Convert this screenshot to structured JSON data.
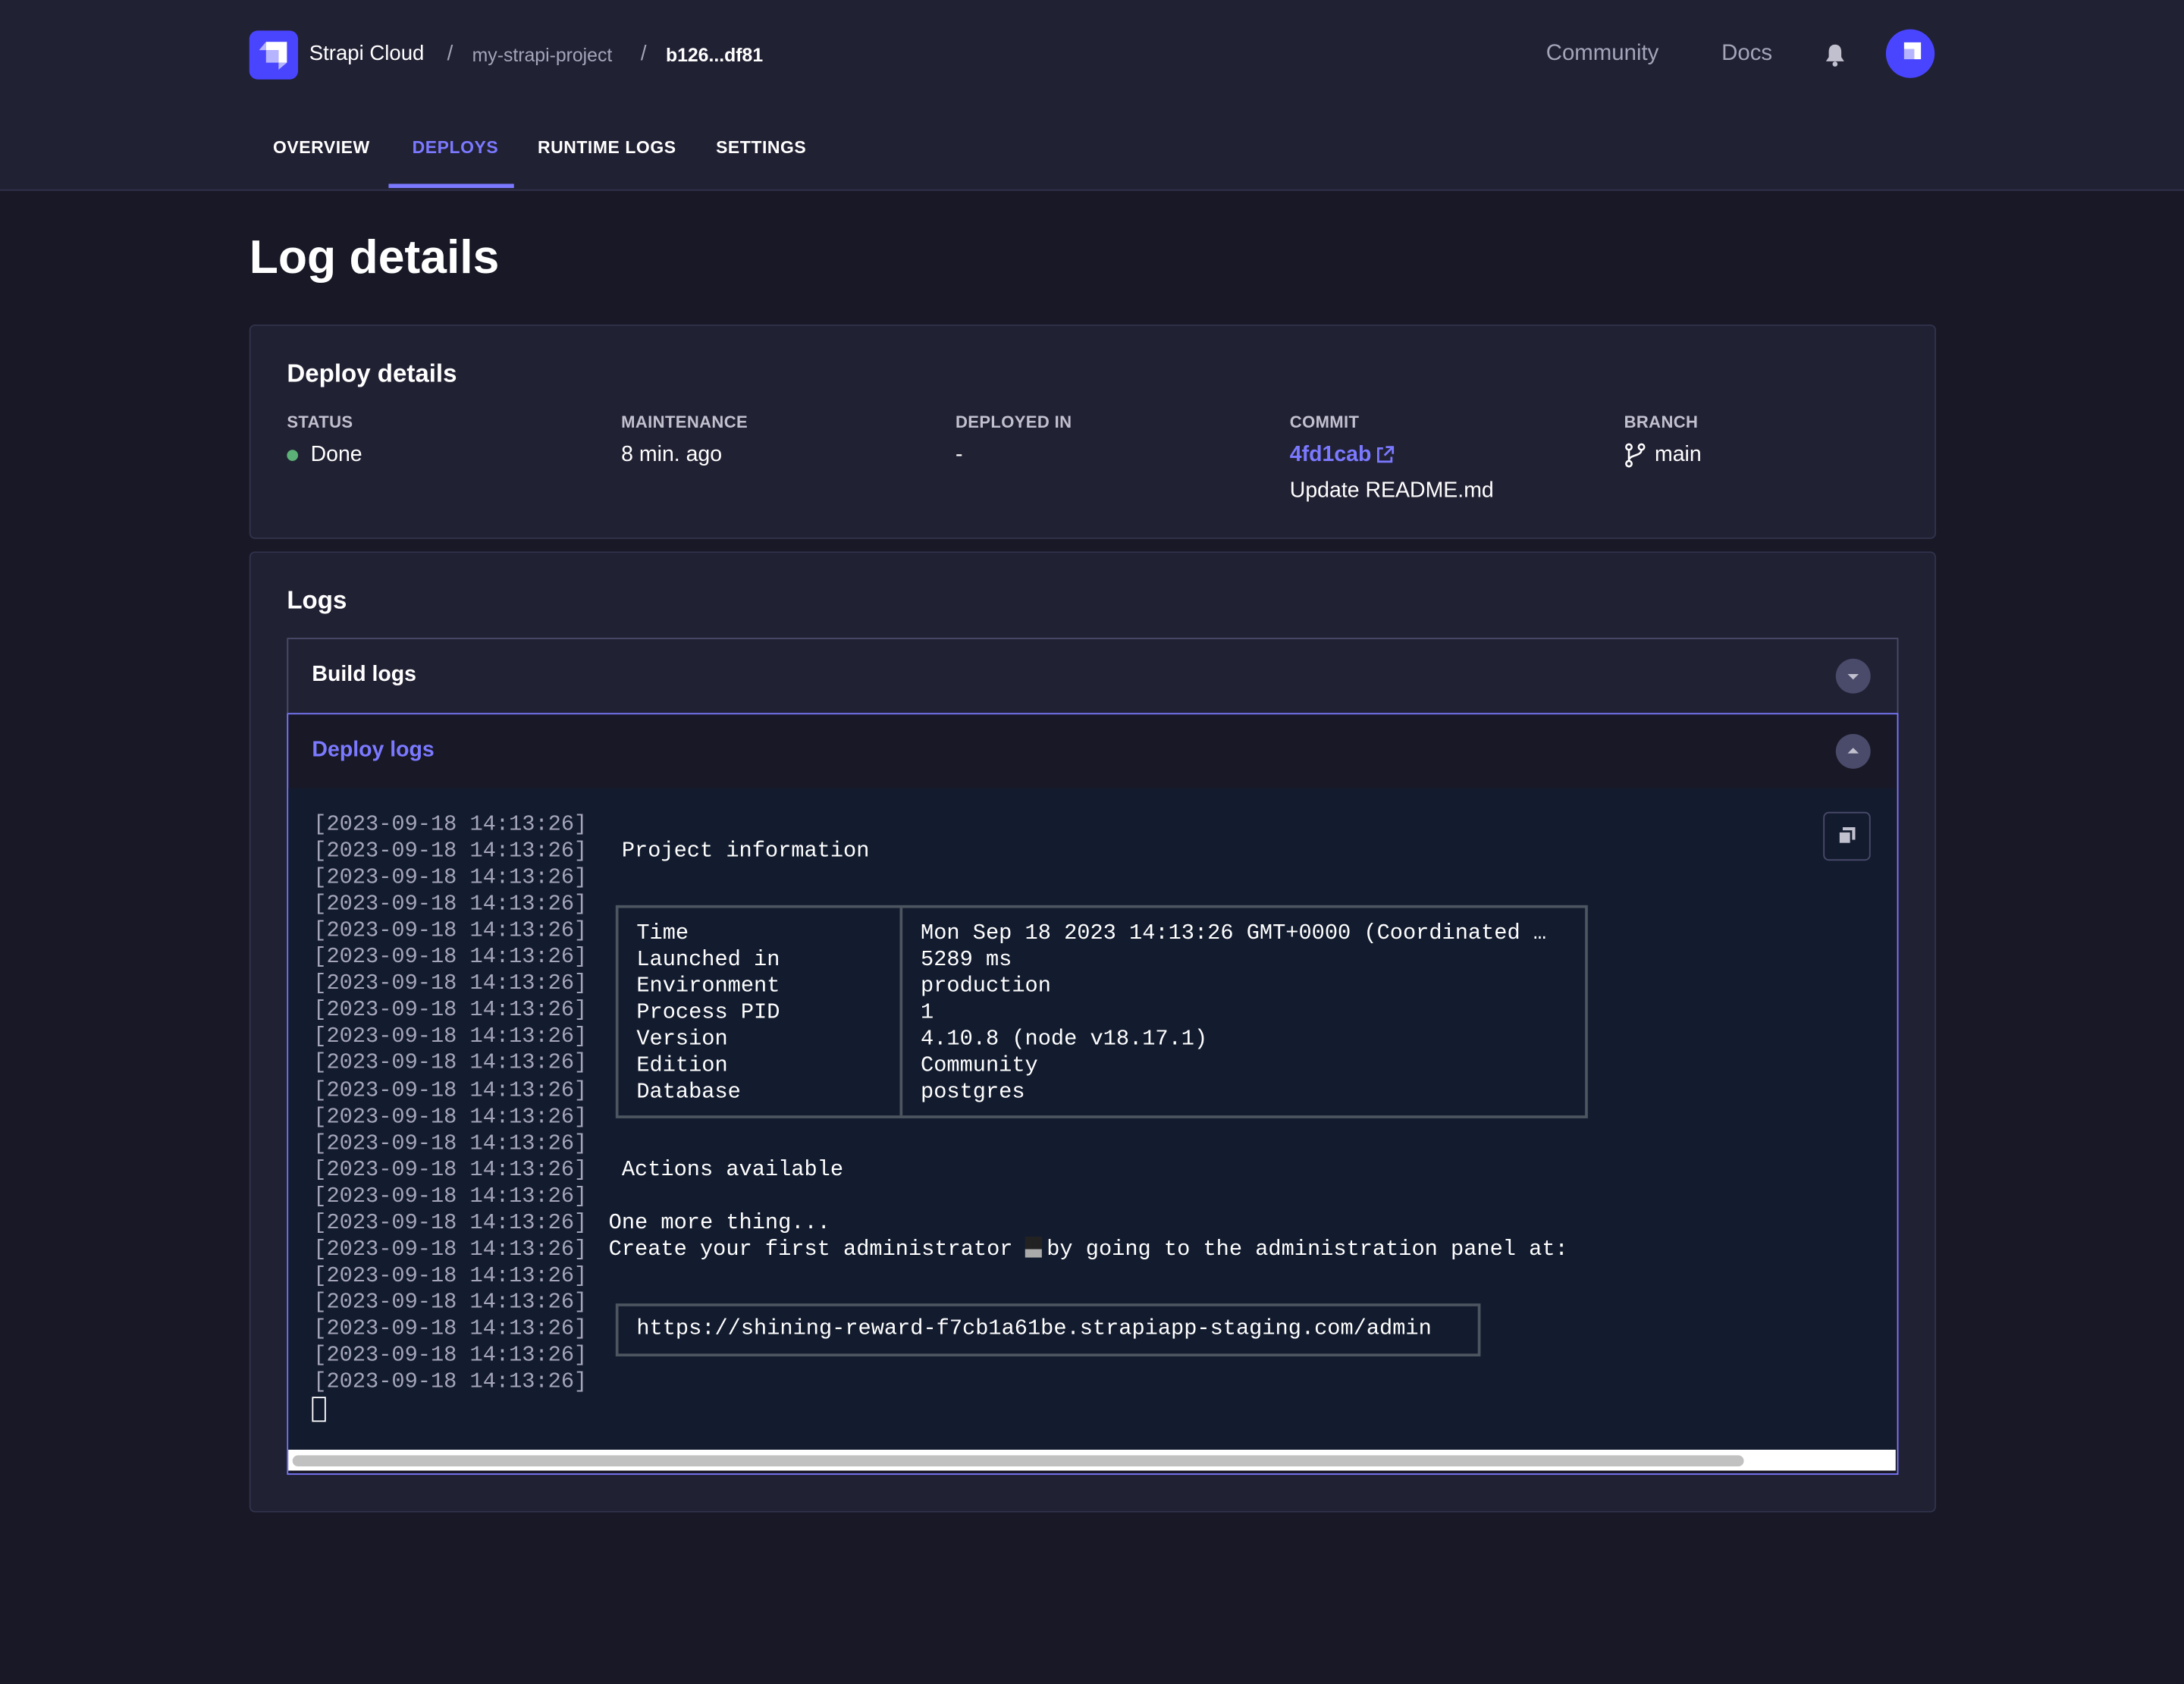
{
  "header": {
    "brand": "Strapi Cloud",
    "breadcrumbs": [
      "my-strapi-project",
      "b126...df81"
    ],
    "separator": "/",
    "links": {
      "community": "Community",
      "docs": "Docs"
    },
    "icons": [
      "strapi-logo",
      "bell-icon",
      "avatar"
    ]
  },
  "tabs": [
    {
      "label": "OVERVIEW"
    },
    {
      "label": "DEPLOYS",
      "active": true
    },
    {
      "label": "RUNTIME LOGS"
    },
    {
      "label": "SETTINGS"
    }
  ],
  "page_title": "Log details",
  "deploy_details": {
    "title": "Deploy details",
    "status": {
      "label": "STATUS",
      "value": "Done",
      "color": "#5cb176"
    },
    "maintenance": {
      "label": "MAINTENANCE",
      "value": "8 min. ago"
    },
    "deployed_in": {
      "label": "DEPLOYED IN",
      "value": "-"
    },
    "commit": {
      "label": "COMMIT",
      "hash": "4fd1cab",
      "message": "Update README.md"
    },
    "branch": {
      "label": "BRANCH",
      "value": "main"
    }
  },
  "logs": {
    "title": "Logs",
    "build_logs": "Build logs",
    "deploy_logs": "Deploy logs",
    "timestamp": "[2023-09-18 14:13:26]",
    "line_count": 22,
    "project_info": " Project information",
    "info_table": [
      [
        "Time",
        "Mon Sep 18 2023 14:13:26 GMT+0000 (Coordinated …"
      ],
      [
        "Launched in",
        "5289 ms"
      ],
      [
        "Environment",
        "production"
      ],
      [
        "Process PID",
        "1"
      ],
      [
        "Version",
        "4.10.8 (node v18.17.1)"
      ],
      [
        "Edition",
        "Community"
      ],
      [
        "Database",
        "postgres"
      ]
    ],
    "actions": " Actions available",
    "one_more": "One more thing...",
    "create_admin_a": "Create your first administrator ",
    "create_admin_b": "by going to the administration panel at:",
    "admin_url": "https://shining-reward-f7cb1a61be.strapiapp-staging.com/admin"
  },
  "colors": {
    "accent": "#7b79ff",
    "brand": "#4945ff",
    "background": "#181826",
    "surface": "#212134",
    "terminal": "#131c2f"
  }
}
